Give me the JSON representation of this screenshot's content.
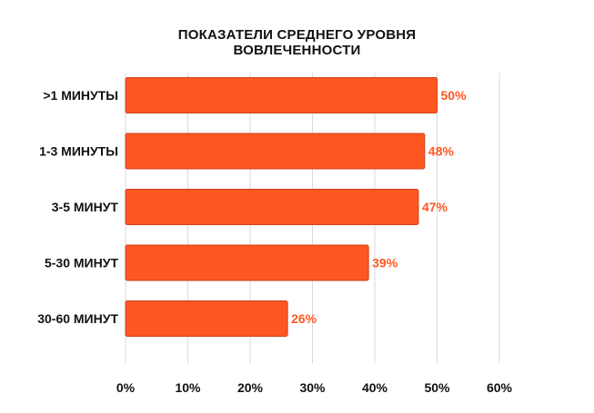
{
  "chart_data": {
    "type": "bar",
    "orientation": "horizontal",
    "title_lines": [
      "ПОКАЗАТЕЛИ СРЕДНЕГО УРОВНЯ",
      "ВОВЛЕЧЕННОСТИ"
    ],
    "categories": [
      ">1 МИНУТЫ",
      "1-3 МИНУТЫ",
      "3-5 МИНУТ",
      "5-30 МИНУТ",
      "30-60 МИНУТ"
    ],
    "values": [
      50,
      48,
      47,
      39,
      26
    ],
    "value_labels": [
      "50%",
      "48%",
      "47%",
      "39%",
      "26%"
    ],
    "xlim": [
      0,
      60
    ],
    "x_ticks": [
      0,
      10,
      20,
      30,
      40,
      50,
      60
    ],
    "x_tick_labels": [
      "0%",
      "10%",
      "20%",
      "30%",
      "40%",
      "50%",
      "60%"
    ],
    "xlabel": "",
    "ylabel": "",
    "grid": "vertical",
    "legend": "none",
    "colors": {
      "bar": "#ff5722",
      "bar_edge": "#c8421a",
      "value_label": "#ff5722",
      "grid": "#d9d9d9",
      "text": "#111111"
    }
  }
}
